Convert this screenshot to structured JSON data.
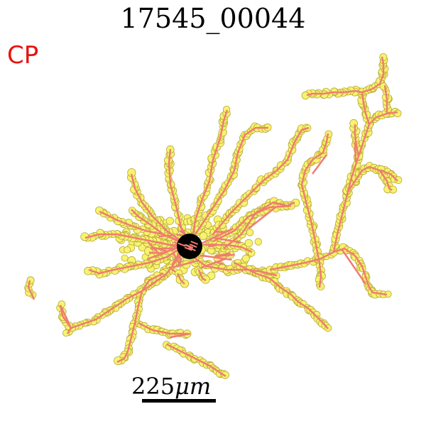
{
  "title": "17545_00044",
  "region_label": "CP",
  "scale_bar": {
    "label_value": "225",
    "label_unit": "μm"
  },
  "colors": {
    "region_label": "#e8130f",
    "branch_line": "#f07c72",
    "node_fill": "#f7f36e",
    "node_stroke": "#b8a83a",
    "soma": "#000000"
  }
}
